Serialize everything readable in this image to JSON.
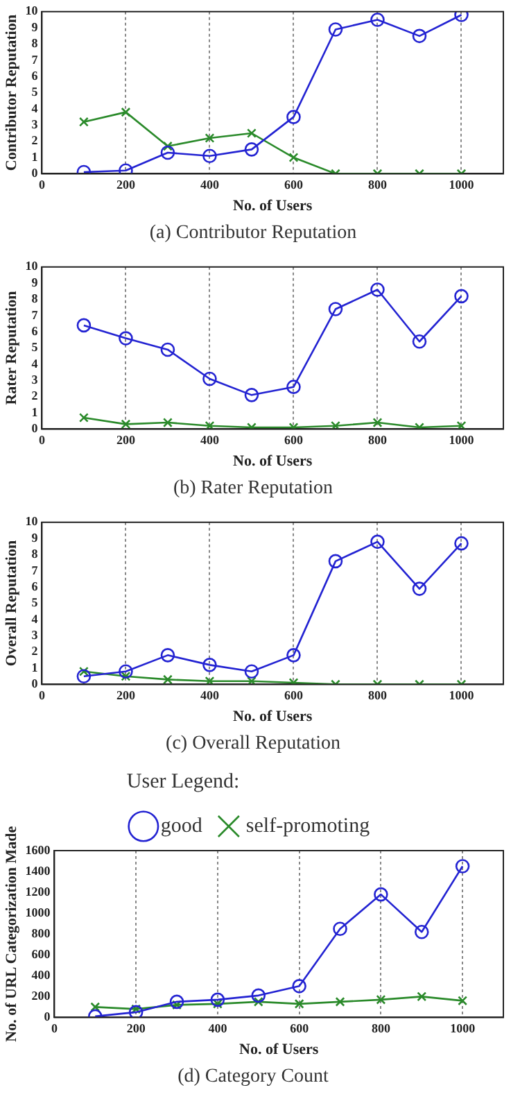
{
  "chart_data": [
    {
      "type": "line",
      "title": "(a) Contributor Reputation",
      "xlabel": "No. of Users",
      "ylabel": "Contributor Reputation",
      "x": [
        100,
        200,
        300,
        400,
        500,
        600,
        700,
        800,
        900,
        1000
      ],
      "series": [
        {
          "color": "#2323d2",
          "marker": "circle",
          "values": [
            0.1,
            0.2,
            1.3,
            1.1,
            1.5,
            3.5,
            8.9,
            9.5,
            8.5,
            9.8
          ]
        },
        {
          "color": "#2a8a2a",
          "marker": "cross",
          "values": [
            3.2,
            3.8,
            1.7,
            2.2,
            2.5,
            1.0,
            0,
            0,
            0,
            0
          ]
        }
      ],
      "xlim": [
        0,
        1100
      ],
      "xticks": [
        0,
        200,
        400,
        600,
        800,
        1000
      ],
      "ylim": [
        0,
        10
      ],
      "yticks": [
        0,
        1,
        2,
        3,
        4,
        5,
        6,
        7,
        8,
        9,
        10
      ],
      "grid": "x",
      "legend": false
    },
    {
      "type": "line",
      "title": "(b) Rater Reputation",
      "xlabel": "No. of Users",
      "ylabel": "Rater Reputation",
      "x": [
        100,
        200,
        300,
        400,
        500,
        600,
        700,
        800,
        900,
        1000
      ],
      "series": [
        {
          "color": "#2323d2",
          "marker": "circle",
          "values": [
            6.4,
            5.6,
            4.9,
            3.1,
            2.1,
            2.6,
            7.4,
            8.6,
            5.4,
            8.2
          ]
        },
        {
          "color": "#2a8a2a",
          "marker": "cross",
          "values": [
            0.7,
            0.3,
            0.4,
            0.2,
            0.1,
            0.1,
            0.2,
            0.4,
            0.1,
            0.2
          ]
        }
      ],
      "xlim": [
        0,
        1100
      ],
      "xticks": [
        0,
        200,
        400,
        600,
        800,
        1000
      ],
      "ylim": [
        0,
        10
      ],
      "yticks": [
        0,
        1,
        2,
        3,
        4,
        5,
        6,
        7,
        8,
        9,
        10
      ],
      "grid": "x",
      "legend": false
    },
    {
      "type": "line",
      "title": "(c) Overall Reputation",
      "xlabel": "No. of Users",
      "ylabel": "Overall Reputation",
      "x": [
        100,
        200,
        300,
        400,
        500,
        600,
        700,
        800,
        900,
        1000
      ],
      "series": [
        {
          "color": "#2323d2",
          "marker": "circle",
          "values": [
            0.5,
            0.8,
            1.8,
            1.2,
            0.8,
            1.8,
            7.6,
            8.8,
            5.9,
            8.7
          ]
        },
        {
          "color": "#2a8a2a",
          "marker": "cross",
          "values": [
            0.8,
            0.5,
            0.3,
            0.2,
            0.2,
            0.1,
            0,
            0,
            0,
            0
          ]
        }
      ],
      "xlim": [
        0,
        1100
      ],
      "xticks": [
        0,
        200,
        400,
        600,
        800,
        1000
      ],
      "ylim": [
        0,
        10
      ],
      "yticks": [
        0,
        1,
        2,
        3,
        4,
        5,
        6,
        7,
        8,
        9,
        10
      ],
      "grid": "x",
      "legend": false
    },
    {
      "type": "line",
      "title": "(d) Category Count",
      "xlabel": "No. of Users",
      "ylabel": "No. of URL Categorization Made",
      "legend_title": "User Legend:",
      "x": [
        100,
        200,
        300,
        400,
        500,
        600,
        700,
        800,
        900,
        1000
      ],
      "series": [
        {
          "name": "good",
          "color": "#2323d2",
          "marker": "circle",
          "values": [
            10,
            50,
            150,
            170,
            210,
            300,
            850,
            1180,
            820,
            1450
          ]
        },
        {
          "name": "self-promoting",
          "color": "#2a8a2a",
          "marker": "cross",
          "values": [
            100,
            80,
            120,
            130,
            150,
            130,
            150,
            170,
            200,
            160
          ]
        }
      ],
      "xlim": [
        0,
        1100
      ],
      "xticks": [
        0,
        200,
        400,
        600,
        800,
        1000
      ],
      "ylim": [
        0,
        1600
      ],
      "yticks": [
        0,
        200,
        400,
        600,
        800,
        1000,
        1200,
        1400,
        1600
      ],
      "grid": "x",
      "legend": "top"
    }
  ]
}
